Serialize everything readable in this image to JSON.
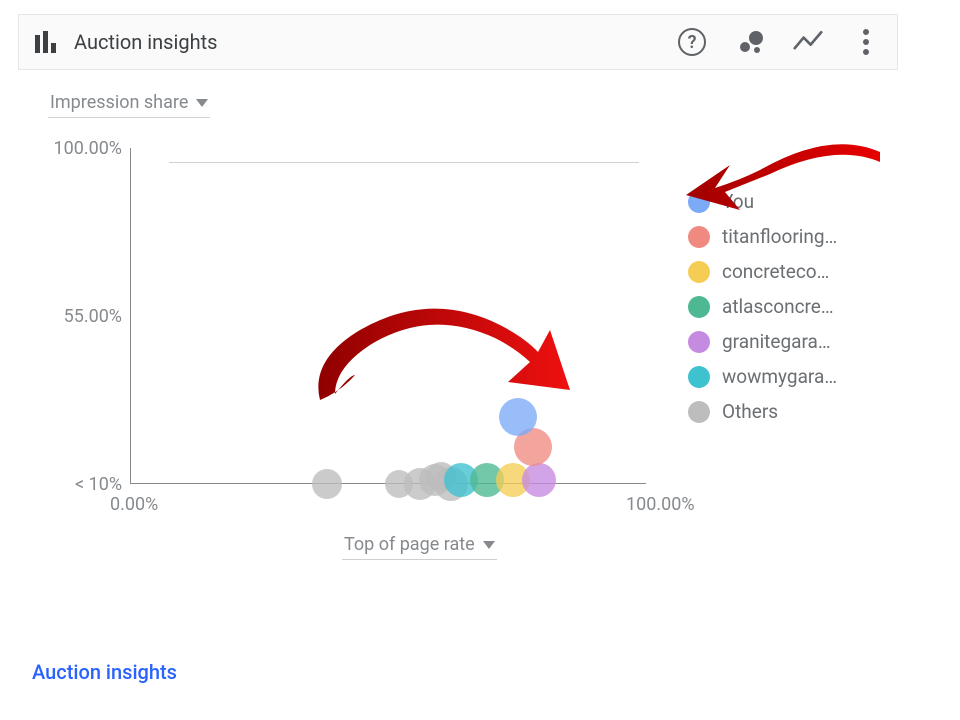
{
  "header": {
    "title": "Auction insights",
    "help_icon_glyph": "?",
    "icon_color": "#5f6368"
  },
  "dropdowns": {
    "y": "Impression share",
    "x": "Top of page rate"
  },
  "chart": {
    "type": "scatter",
    "background_color": "#ffffff",
    "grid_color": "#d0d0d0",
    "axis_color": "#888888",
    "label_fontsize": 18,
    "label_color": "#868a8e",
    "xlim": [
      0,
      100
    ],
    "ylim": [
      10,
      100
    ],
    "x_ticks": [
      {
        "value": 0,
        "label": "0.00%"
      },
      {
        "value": 100,
        "label": "100.00%"
      }
    ],
    "y_ticks": [
      {
        "value": 100,
        "label": "100.00%"
      },
      {
        "value": 55,
        "label": "55.00%"
      },
      {
        "value": 10,
        "label": "< 10%"
      }
    ],
    "bubble_opacity": 0.78,
    "bubble_radius": 16,
    "points": [
      {
        "series": "others",
        "x": 38,
        "y": 10,
        "r": 15
      },
      {
        "series": "others",
        "x": 52,
        "y": 10,
        "r": 14
      },
      {
        "series": "others",
        "x": 56,
        "y": 10,
        "r": 16
      },
      {
        "series": "others",
        "x": 59,
        "y": 11,
        "r": 16
      },
      {
        "series": "others",
        "x": 62,
        "y": 10,
        "r": 17
      },
      {
        "series": "others",
        "x": 60,
        "y": 12,
        "r": 15
      },
      {
        "series": "wowmygara",
        "x": 64,
        "y": 11,
        "r": 17
      },
      {
        "series": "atlasconcre",
        "x": 69,
        "y": 11,
        "r": 17
      },
      {
        "series": "concreteco",
        "x": 74,
        "y": 11,
        "r": 17
      },
      {
        "series": "granitegara",
        "x": 79,
        "y": 11,
        "r": 17
      },
      {
        "series": "titanflooring",
        "x": 78,
        "y": 20,
        "r": 19
      },
      {
        "series": "you",
        "x": 75,
        "y": 28,
        "r": 19
      }
    ],
    "legend": [
      {
        "id": "you",
        "label": "You",
        "color": "#7baaf7"
      },
      {
        "id": "titanflooring",
        "label": "titanflooring…",
        "color": "#f08a80"
      },
      {
        "id": "concreteco",
        "label": "concreteco…",
        "color": "#f5cd55"
      },
      {
        "id": "atlasconcre",
        "label": "atlasconcre…",
        "color": "#4db892"
      },
      {
        "id": "granitegara",
        "label": "granitegara…",
        "color": "#c58be0"
      },
      {
        "id": "wowmygara",
        "label": "wowmygara…",
        "color": "#3ec2cf"
      },
      {
        "id": "others",
        "label": "Others",
        "color": "#bdbdbd"
      }
    ]
  },
  "annotations": {
    "arrow_color": "#d40000"
  },
  "footer_link": "Auction insights"
}
